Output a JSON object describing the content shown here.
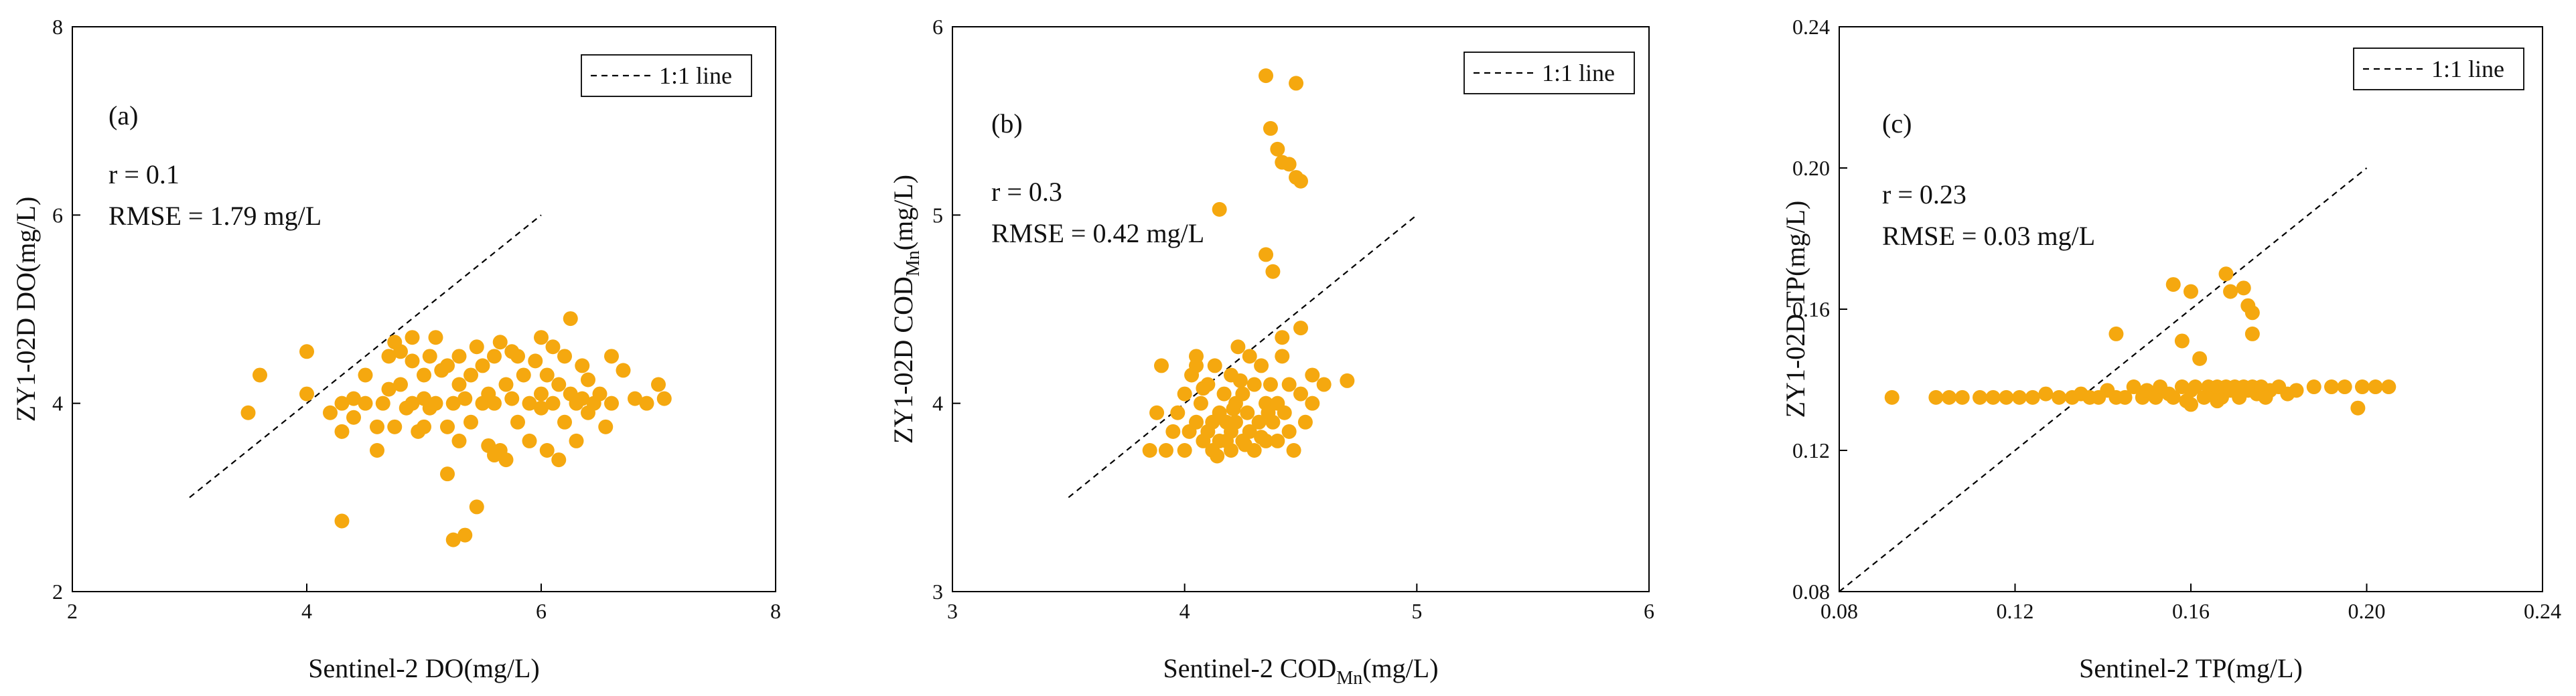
{
  "colors": {
    "marker": "#F5A80F",
    "line": "#000000"
  },
  "chart_data": [
    {
      "type": "scatter",
      "panel_label": "(a)",
      "legend": "1:1 line",
      "xlabel": {
        "base": "Sentinel-2 DO(mg/L)",
        "sub": "",
        "tail": ""
      },
      "ylabel": {
        "base": "ZY1-02D DO(mg/L)",
        "sub": "",
        "tail": ""
      },
      "stats": {
        "r": "r = 0.1",
        "rmse": "RMSE = 1.79 mg/L"
      },
      "xlim": [
        2,
        8
      ],
      "ylim": [
        2,
        8
      ],
      "xticks": [
        2,
        4,
        6,
        8
      ],
      "yticks": [
        2,
        4,
        6,
        8
      ],
      "xtick_labels": [
        "2",
        "4",
        "6",
        "8"
      ],
      "ytick_labels": [
        "2",
        "4",
        "6",
        "8"
      ],
      "one_to_one": [
        [
          3,
          3
        ],
        [
          6,
          6
        ]
      ],
      "points": [
        [
          3.5,
          3.9
        ],
        [
          3.6,
          4.3
        ],
        [
          4.0,
          4.55
        ],
        [
          4.0,
          4.1
        ],
        [
          4.2,
          3.9
        ],
        [
          4.3,
          3.7
        ],
        [
          4.3,
          4.0
        ],
        [
          4.4,
          4.05
        ],
        [
          4.4,
          3.85
        ],
        [
          4.5,
          4.3
        ],
        [
          4.6,
          3.5
        ],
        [
          4.6,
          3.75
        ],
        [
          4.65,
          4.0
        ],
        [
          4.7,
          4.15
        ],
        [
          4.7,
          4.5
        ],
        [
          4.75,
          3.75
        ],
        [
          4.8,
          4.2
        ],
        [
          4.8,
          4.55
        ],
        [
          4.85,
          3.95
        ],
        [
          4.9,
          4.7
        ],
        [
          4.9,
          4.0
        ],
        [
          4.95,
          3.7
        ],
        [
          5.0,
          4.3
        ],
        [
          5.0,
          4.05
        ],
        [
          5.05,
          4.5
        ],
        [
          5.05,
          3.95
        ],
        [
          5.1,
          4.0
        ],
        [
          5.1,
          4.7
        ],
        [
          5.15,
          4.35
        ],
        [
          5.2,
          3.75
        ],
        [
          5.2,
          3.25
        ],
        [
          5.25,
          4.0
        ],
        [
          5.3,
          4.5
        ],
        [
          5.3,
          4.2
        ],
        [
          5.3,
          3.6
        ],
        [
          5.35,
          4.05
        ],
        [
          5.4,
          4.3
        ],
        [
          5.4,
          3.8
        ],
        [
          5.45,
          4.6
        ],
        [
          5.5,
          4.0
        ],
        [
          5.5,
          4.4
        ],
        [
          5.55,
          4.1
        ],
        [
          5.55,
          3.55
        ],
        [
          5.6,
          4.5
        ],
        [
          5.6,
          4.0
        ],
        [
          5.65,
          4.65
        ],
        [
          5.65,
          3.5
        ],
        [
          5.7,
          4.2
        ],
        [
          5.7,
          3.4
        ],
        [
          5.75,
          4.05
        ],
        [
          5.8,
          4.5
        ],
        [
          5.8,
          3.8
        ],
        [
          5.85,
          4.3
        ],
        [
          5.9,
          4.0
        ],
        [
          5.9,
          3.6
        ],
        [
          5.95,
          4.45
        ],
        [
          6.0,
          4.1
        ],
        [
          6.0,
          3.95
        ],
        [
          6.0,
          4.7
        ],
        [
          6.05,
          4.3
        ],
        [
          6.05,
          3.5
        ],
        [
          6.1,
          4.0
        ],
        [
          6.15,
          4.2
        ],
        [
          6.15,
          3.4
        ],
        [
          6.2,
          4.5
        ],
        [
          6.2,
          3.8
        ],
        [
          6.25,
          4.1
        ],
        [
          6.25,
          4.9
        ],
        [
          6.3,
          3.6
        ],
        [
          6.3,
          4.0
        ],
        [
          6.35,
          4.4
        ],
        [
          6.4,
          4.25
        ],
        [
          6.4,
          3.9
        ],
        [
          6.45,
          4.0
        ],
        [
          6.5,
          4.1
        ],
        [
          6.55,
          3.75
        ],
        [
          6.6,
          4.5
        ],
        [
          6.6,
          4.0
        ],
        [
          6.7,
          4.35
        ],
        [
          6.8,
          4.05
        ],
        [
          6.9,
          4.0
        ],
        [
          7.0,
          4.2
        ],
        [
          7.05,
          4.05
        ],
        [
          4.3,
          2.75
        ],
        [
          5.25,
          2.55
        ],
        [
          5.35,
          2.6
        ],
        [
          5.45,
          2.9
        ],
        [
          5.0,
          3.75
        ],
        [
          4.5,
          4.0
        ],
        [
          5.6,
          3.45
        ],
        [
          4.9,
          4.45
        ],
        [
          5.75,
          4.55
        ],
        [
          6.35,
          4.05
        ],
        [
          5.2,
          4.4
        ],
        [
          4.75,
          4.65
        ],
        [
          6.1,
          4.6
        ]
      ]
    },
    {
      "type": "scatter",
      "panel_label": "(b)",
      "legend": "1:1 line",
      "xlabel": {
        "base": "Sentinel-2 COD",
        "sub": "Mn",
        "tail": "(mg/L)"
      },
      "ylabel": {
        "base": "ZY1-02D COD",
        "sub": "Mn",
        "tail": "(mg/L)"
      },
      "stats": {
        "r": "r = 0.3",
        "rmse": "RMSE = 0.42 mg/L"
      },
      "xlim": [
        3,
        6
      ],
      "ylim": [
        3,
        6
      ],
      "xticks": [
        3,
        4,
        5,
        6
      ],
      "yticks": [
        3,
        4,
        5,
        6
      ],
      "xtick_labels": [
        "3",
        "4",
        "5",
        "6"
      ],
      "ytick_labels": [
        "3",
        "4",
        "5",
        "6"
      ],
      "one_to_one": [
        [
          3.5,
          3.5
        ],
        [
          5,
          5
        ]
      ],
      "points": [
        [
          3.85,
          3.75
        ],
        [
          3.88,
          3.95
        ],
        [
          3.9,
          4.2
        ],
        [
          3.92,
          3.75
        ],
        [
          3.95,
          3.85
        ],
        [
          3.97,
          3.95
        ],
        [
          4.0,
          3.75
        ],
        [
          4.0,
          4.05
        ],
        [
          4.02,
          3.85
        ],
        [
          4.03,
          4.15
        ],
        [
          4.05,
          3.9
        ],
        [
          4.05,
          4.25
        ],
        [
          4.07,
          4.0
        ],
        [
          4.08,
          3.8
        ],
        [
          4.1,
          4.1
        ],
        [
          4.1,
          3.85
        ],
        [
          4.12,
          3.75
        ],
        [
          4.13,
          4.2
        ],
        [
          4.15,
          3.95
        ],
        [
          4.15,
          3.8
        ],
        [
          4.17,
          4.05
        ],
        [
          4.18,
          3.9
        ],
        [
          4.2,
          4.15
        ],
        [
          4.2,
          3.85
        ],
        [
          4.2,
          3.75
        ],
        [
          4.22,
          4.0
        ],
        [
          4.22,
          3.9
        ],
        [
          4.23,
          4.3
        ],
        [
          4.25,
          3.8
        ],
        [
          4.25,
          4.05
        ],
        [
          4.27,
          3.95
        ],
        [
          4.28,
          3.85
        ],
        [
          4.3,
          4.1
        ],
        [
          4.3,
          3.75
        ],
        [
          4.32,
          3.9
        ],
        [
          4.33,
          4.2
        ],
        [
          4.35,
          4.0
        ],
        [
          4.35,
          3.8
        ],
        [
          4.37,
          4.1
        ],
        [
          4.38,
          3.9
        ],
        [
          4.4,
          4.0
        ],
        [
          4.4,
          3.8
        ],
        [
          4.42,
          4.25
        ],
        [
          4.43,
          3.95
        ],
        [
          4.45,
          4.1
        ],
        [
          4.45,
          3.85
        ],
        [
          4.47,
          3.75
        ],
        [
          4.5,
          4.05
        ],
        [
          4.5,
          4.4
        ],
        [
          4.52,
          3.9
        ],
        [
          4.55,
          4.0
        ],
        [
          4.55,
          4.15
        ],
        [
          4.6,
          4.1
        ],
        [
          4.7,
          4.12
        ],
        [
          4.15,
          5.03
        ],
        [
          4.35,
          5.74
        ],
        [
          4.37,
          5.46
        ],
        [
          4.4,
          5.35
        ],
        [
          4.42,
          5.28
        ],
        [
          4.45,
          5.27
        ],
        [
          4.48,
          5.7
        ],
        [
          4.5,
          5.18
        ],
        [
          4.48,
          5.2
        ],
        [
          4.35,
          4.79
        ],
        [
          4.38,
          4.7
        ],
        [
          4.42,
          4.35
        ],
        [
          4.28,
          4.25
        ],
        [
          4.05,
          4.2
        ],
        [
          4.18,
          3.8
        ],
        [
          4.26,
          3.78
        ],
        [
          4.12,
          3.9
        ],
        [
          4.33,
          3.82
        ],
        [
          4.21,
          3.97
        ],
        [
          4.08,
          4.08
        ],
        [
          4.24,
          4.12
        ],
        [
          4.36,
          3.95
        ],
        [
          4.14,
          3.72
        ]
      ]
    },
    {
      "type": "scatter",
      "panel_label": "(c)",
      "legend": "1:1 line",
      "xlabel": {
        "base": "Sentinel-2 TP(mg/L)",
        "sub": "",
        "tail": ""
      },
      "ylabel": {
        "base": "ZY1-02D TP(mg/L)",
        "sub": "",
        "tail": ""
      },
      "stats": {
        "r": "r = 0.23",
        "rmse": "RMSE = 0.03 mg/L"
      },
      "xlim": [
        0.08,
        0.24
      ],
      "ylim": [
        0.08,
        0.24
      ],
      "xticks": [
        0.08,
        0.12,
        0.16,
        0.2,
        0.24
      ],
      "yticks": [
        0.08,
        0.12,
        0.16,
        0.2,
        0.24
      ],
      "xtick_labels": [
        "0.08",
        "0.12",
        "0.16",
        "0.20",
        "0.24"
      ],
      "ytick_labels": [
        "0.08",
        "0.12",
        "0.16",
        "0.20",
        "0.24"
      ],
      "one_to_one": [
        [
          0.08,
          0.08
        ],
        [
          0.2,
          0.2
        ]
      ],
      "points": [
        [
          0.092,
          0.135
        ],
        [
          0.102,
          0.135
        ],
        [
          0.105,
          0.135
        ],
        [
          0.108,
          0.135
        ],
        [
          0.112,
          0.135
        ],
        [
          0.115,
          0.135
        ],
        [
          0.118,
          0.135
        ],
        [
          0.121,
          0.135
        ],
        [
          0.124,
          0.135
        ],
        [
          0.127,
          0.136
        ],
        [
          0.13,
          0.135
        ],
        [
          0.133,
          0.135
        ],
        [
          0.135,
          0.136
        ],
        [
          0.137,
          0.135
        ],
        [
          0.139,
          0.135
        ],
        [
          0.141,
          0.137
        ],
        [
          0.143,
          0.135
        ],
        [
          0.145,
          0.135
        ],
        [
          0.147,
          0.138
        ],
        [
          0.149,
          0.135
        ],
        [
          0.15,
          0.137
        ],
        [
          0.152,
          0.135
        ],
        [
          0.153,
          0.138
        ],
        [
          0.155,
          0.136
        ],
        [
          0.156,
          0.135
        ],
        [
          0.158,
          0.138
        ],
        [
          0.159,
          0.134
        ],
        [
          0.16,
          0.137
        ],
        [
          0.161,
          0.138
        ],
        [
          0.163,
          0.135
        ],
        [
          0.164,
          0.138
        ],
        [
          0.165,
          0.136
        ],
        [
          0.166,
          0.138
        ],
        [
          0.167,
          0.135
        ],
        [
          0.168,
          0.138
        ],
        [
          0.169,
          0.137
        ],
        [
          0.17,
          0.138
        ],
        [
          0.171,
          0.135
        ],
        [
          0.172,
          0.138
        ],
        [
          0.173,
          0.137
        ],
        [
          0.174,
          0.138
        ],
        [
          0.175,
          0.136
        ],
        [
          0.176,
          0.138
        ],
        [
          0.178,
          0.137
        ],
        [
          0.18,
          0.138
        ],
        [
          0.182,
          0.136
        ],
        [
          0.184,
          0.137
        ],
        [
          0.188,
          0.138
        ],
        [
          0.192,
          0.138
        ],
        [
          0.195,
          0.138
        ],
        [
          0.198,
          0.132
        ],
        [
          0.199,
          0.138
        ],
        [
          0.202,
          0.138
        ],
        [
          0.205,
          0.138
        ],
        [
          0.143,
          0.153
        ],
        [
          0.156,
          0.167
        ],
        [
          0.158,
          0.151
        ],
        [
          0.16,
          0.165
        ],
        [
          0.162,
          0.146
        ],
        [
          0.168,
          0.17
        ],
        [
          0.169,
          0.165
        ],
        [
          0.172,
          0.166
        ],
        [
          0.173,
          0.161
        ],
        [
          0.174,
          0.159
        ],
        [
          0.174,
          0.153
        ],
        [
          0.16,
          0.133
        ],
        [
          0.177,
          0.135
        ],
        [
          0.166,
          0.134
        ]
      ]
    }
  ]
}
